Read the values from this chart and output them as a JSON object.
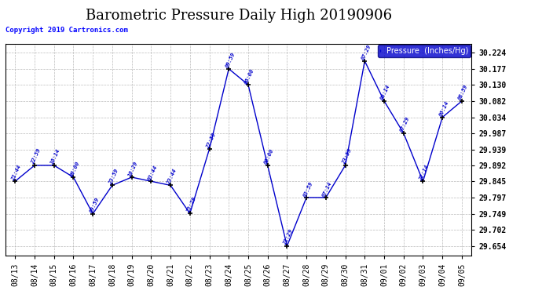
{
  "title": "Barometric Pressure Daily High 20190906",
  "copyright": "Copyright 2019 Cartronics.com",
  "legend_label": "Pressure  (Inches/Hg)",
  "dates": [
    "08/13",
    "08/14",
    "08/15",
    "08/16",
    "08/17",
    "08/18",
    "08/19",
    "08/20",
    "08/21",
    "08/22",
    "08/23",
    "08/24",
    "08/25",
    "08/26",
    "08/27",
    "08/28",
    "08/29",
    "08/30",
    "08/31",
    "09/01",
    "09/02",
    "09/03",
    "09/04",
    "09/05"
  ],
  "values": [
    29.845,
    29.892,
    29.892,
    29.857,
    29.749,
    29.833,
    29.857,
    29.845,
    29.833,
    29.75,
    29.94,
    30.177,
    30.13,
    29.892,
    29.654,
    29.797,
    29.797,
    29.892,
    30.2,
    30.082,
    29.987,
    29.845,
    30.034,
    30.082
  ],
  "times": [
    "21:44",
    "22:59",
    "10:14",
    "00:00",
    "09:59",
    "23:59",
    "10:29",
    "03:44",
    "23:44",
    "23:29",
    "22:59",
    "09:59",
    "00:00",
    "00:00",
    "21:29",
    "03:59",
    "07:14",
    "23:59",
    "07:29",
    "00:14",
    "07:29",
    "22:14",
    "00:14",
    "08:59"
  ],
  "ylim": [
    29.625,
    30.25
  ],
  "yticks": [
    29.654,
    29.702,
    29.749,
    29.797,
    29.845,
    29.892,
    29.939,
    29.987,
    30.034,
    30.082,
    30.13,
    30.177,
    30.224
  ],
  "line_color": "#0000CC",
  "marker_color": "#000000",
  "text_color": "#0000CC",
  "bg_color": "#ffffff",
  "grid_color": "#aaaaaa",
  "title_fontsize": 13,
  "tick_fontsize": 7,
  "legend_bg": "#0000CC",
  "legend_text_color": "#ffffff"
}
